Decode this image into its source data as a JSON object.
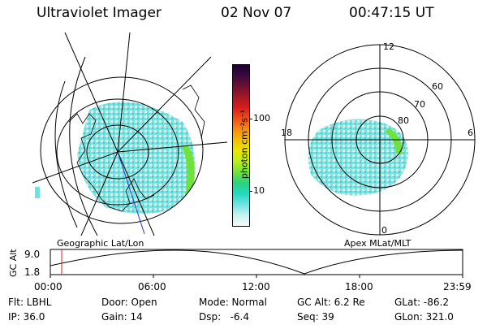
{
  "header": {
    "instrument": "Ultraviolet Imager",
    "date": "02 Nov 07",
    "time": "00:47:15 UT"
  },
  "left_map": {
    "label": "Geographic Lat/Lon"
  },
  "right_map": {
    "label": "Apex MLat/MLT",
    "mlt_labels": [
      "12",
      "18",
      "6",
      "0"
    ],
    "lat_labels": [
      "80",
      "70",
      "60"
    ]
  },
  "colorbar": {
    "unit": "photon cm⁻²s⁻¹",
    "ticks": [
      "100",
      "10"
    ],
    "colors": [
      "#1a0030",
      "#3b0a3e",
      "#6e1032",
      "#a31826",
      "#d81d1c",
      "#f2501a",
      "#fb8a10",
      "#f5c000",
      "#e9e600",
      "#b9ee1f",
      "#70e33a",
      "#2bd37d",
      "#23d9bf",
      "#6fe3e3",
      "#c7f1f1",
      "#f7fbfb"
    ]
  },
  "timeline": {
    "ylabel": "GC Alt",
    "y_ticks": [
      "9.0",
      "1.8"
    ],
    "x_ticks": [
      "00:00",
      "06:00",
      "12:00",
      "18:00",
      "23:59"
    ],
    "current_time_marker": "00:47"
  },
  "info": {
    "filter": "Flt: LBHL",
    "ip": "IP: 36.0",
    "door": "Door: Open",
    "gain": "Gain: 14",
    "mode": "Mode: Normal",
    "dsp": "Dsp:   -6.4",
    "gc_alt": "GC Alt: 6.2 Re",
    "seq": "Seq: 39",
    "glat": "GLat: -86.2",
    "glon": "GLon: 321.0"
  }
}
